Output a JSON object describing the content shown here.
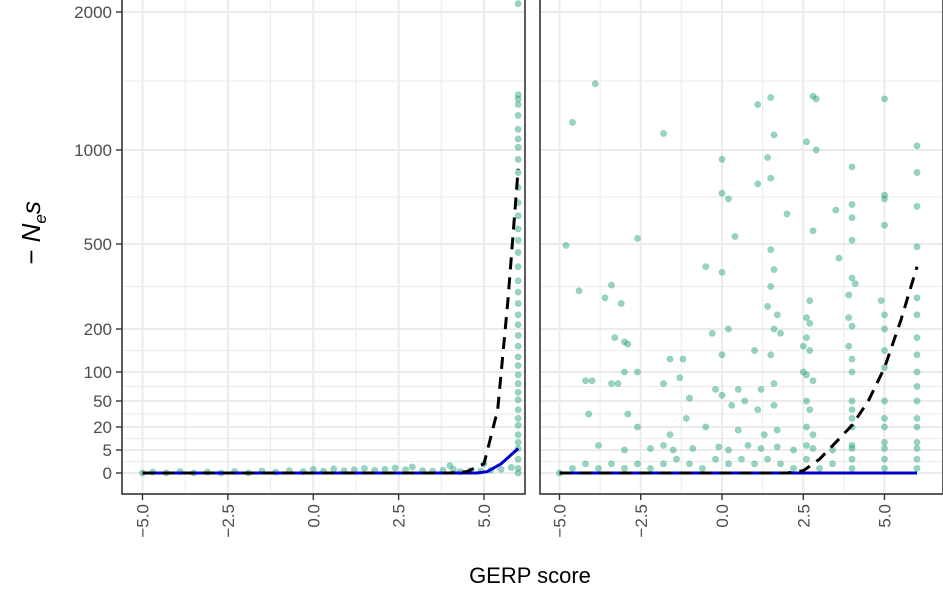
{
  "chart_data": {
    "type": "scatter",
    "xlabel": "GERP score",
    "ylabel_parts": {
      "prefix": "− N",
      "subscript": "e",
      "suffix": "s"
    },
    "x_ticks": [
      -5.0,
      -2.5,
      0.0,
      2.5,
      5.0
    ],
    "x_tick_labels": [
      "−5.0",
      "−2.5",
      "0.0",
      "2.5",
      "5.0"
    ],
    "y_ticks": [
      0,
      5,
      20,
      50,
      100,
      200,
      500,
      1000,
      2000
    ],
    "y_tick_labels": [
      "0",
      "5",
      "20",
      "50",
      "100",
      "200",
      "500",
      "1000",
      "2000"
    ],
    "y_scale": "pseudo-log (sqrt-like)",
    "y_range": [
      -60,
      2100
    ],
    "grid": true,
    "colors": {
      "points": "#1b9e77",
      "dashed": "#000000",
      "solid": "#0000cc",
      "grid": "#ebebeb",
      "border": "#333333"
    },
    "panels": [
      {
        "xlim": [
          -5.6,
          6.2
        ],
        "points": [
          {
            "x": 6.0,
            "y": 2070
          },
          {
            "x": 6.0,
            "y": 1400
          },
          {
            "x": 6.0,
            "y": 1370
          },
          {
            "x": 6.0,
            "y": 1330
          },
          {
            "x": 6.0,
            "y": 1250
          },
          {
            "x": 6.0,
            "y": 1150
          },
          {
            "x": 6.0,
            "y": 1080
          },
          {
            "x": 6.0,
            "y": 1020
          },
          {
            "x": 6.0,
            "y": 950
          },
          {
            "x": 6.0,
            "y": 880
          },
          {
            "x": 6.0,
            "y": 800
          },
          {
            "x": 6.0,
            "y": 720
          },
          {
            "x": 6.0,
            "y": 650
          },
          {
            "x": 6.0,
            "y": 580
          },
          {
            "x": 6.0,
            "y": 520
          },
          {
            "x": 6.0,
            "y": 470
          },
          {
            "x": 6.0,
            "y": 420
          },
          {
            "x": 6.0,
            "y": 370
          },
          {
            "x": 6.0,
            "y": 330
          },
          {
            "x": 6.0,
            "y": 290
          },
          {
            "x": 6.0,
            "y": 250
          },
          {
            "x": 6.0,
            "y": 215
          },
          {
            "x": 6.0,
            "y": 185
          },
          {
            "x": 6.0,
            "y": 160
          },
          {
            "x": 6.0,
            "y": 135
          },
          {
            "x": 6.0,
            "y": 115
          },
          {
            "x": 6.0,
            "y": 95
          },
          {
            "x": 6.0,
            "y": 80
          },
          {
            "x": 6.0,
            "y": 65
          },
          {
            "x": 6.0,
            "y": 52
          },
          {
            "x": 6.0,
            "y": 40
          },
          {
            "x": 6.0,
            "y": 30
          },
          {
            "x": 6.0,
            "y": 22
          },
          {
            "x": 6.0,
            "y": 15
          },
          {
            "x": 6.0,
            "y": 10
          },
          {
            "x": 6.0,
            "y": 6
          },
          {
            "x": 6.0,
            "y": 3
          },
          {
            "x": 6.0,
            "y": 1
          },
          {
            "x": 6.0,
            "y": 0
          },
          {
            "x": -5.0,
            "y": 0
          },
          {
            "x": -4.7,
            "y": 0.2
          },
          {
            "x": -4.3,
            "y": 0
          },
          {
            "x": -3.9,
            "y": 0.3
          },
          {
            "x": -3.5,
            "y": 0
          },
          {
            "x": -3.1,
            "y": 0.2
          },
          {
            "x": -2.7,
            "y": 0
          },
          {
            "x": -2.3,
            "y": 0.3
          },
          {
            "x": -1.9,
            "y": 0
          },
          {
            "x": -1.5,
            "y": 0.4
          },
          {
            "x": -1.1,
            "y": 0.2
          },
          {
            "x": -0.7,
            "y": 0.5
          },
          {
            "x": -0.3,
            "y": 0.3
          },
          {
            "x": 0.0,
            "y": 0.8
          },
          {
            "x": 0.3,
            "y": 0.4
          },
          {
            "x": 0.6,
            "y": 0.9
          },
          {
            "x": 0.9,
            "y": 0.5
          },
          {
            "x": 1.2,
            "y": 0.7
          },
          {
            "x": 1.5,
            "y": 1.0
          },
          {
            "x": 1.8,
            "y": 0.6
          },
          {
            "x": 2.1,
            "y": 0.8
          },
          {
            "x": 2.4,
            "y": 1.1
          },
          {
            "x": 2.7,
            "y": 0.7
          },
          {
            "x": 2.9,
            "y": 1.3
          },
          {
            "x": 3.2,
            "y": 0.5
          },
          {
            "x": 3.5,
            "y": 0.4
          },
          {
            "x": 3.8,
            "y": 0.6
          },
          {
            "x": 4.0,
            "y": 1.6
          },
          {
            "x": 4.1,
            "y": 0.8
          },
          {
            "x": 4.3,
            "y": 0.3
          },
          {
            "x": 4.6,
            "y": 0.5
          },
          {
            "x": 4.9,
            "y": 0.4
          },
          {
            "x": 5.0,
            "y": 2.0
          },
          {
            "x": 5.2,
            "y": 0.6
          },
          {
            "x": 5.5,
            "y": 0.8
          },
          {
            "x": 5.8,
            "y": 1.2
          }
        ],
        "dashed_line": [
          {
            "x": -5.0,
            "y": 0
          },
          {
            "x": 4.0,
            "y": 0
          },
          {
            "x": 4.5,
            "y": 0.3
          },
          {
            "x": 5.0,
            "y": 2
          },
          {
            "x": 5.4,
            "y": 40
          },
          {
            "x": 5.7,
            "y": 300
          },
          {
            "x": 6.0,
            "y": 900
          }
        ],
        "solid_line": [
          {
            "x": -5.0,
            "y": 0
          },
          {
            "x": 4.8,
            "y": 0
          },
          {
            "x": 5.1,
            "y": 0.3
          },
          {
            "x": 5.5,
            "y": 2
          },
          {
            "x": 6.0,
            "y": 6
          }
        ]
      },
      {
        "xlim": [
          -5.6,
          6.8
        ],
        "points": [
          {
            "x": -3.9,
            "y": 1480
          },
          {
            "x": -4.6,
            "y": 1200
          },
          {
            "x": -1.8,
            "y": 1120
          },
          {
            "x": 1.1,
            "y": 1330
          },
          {
            "x": 1.5,
            "y": 1380
          },
          {
            "x": 2.8,
            "y": 1390
          },
          {
            "x": 2.9,
            "y": 1370
          },
          {
            "x": 5.0,
            "y": 1370
          },
          {
            "x": 1.6,
            "y": 1110
          },
          {
            "x": 2.6,
            "y": 1060
          },
          {
            "x": 0.0,
            "y": 950
          },
          {
            "x": 1.4,
            "y": 960
          },
          {
            "x": 2.9,
            "y": 1000
          },
          {
            "x": 4.0,
            "y": 910
          },
          {
            "x": 6.0,
            "y": 1030
          },
          {
            "x": 6.0,
            "y": 880
          },
          {
            "x": 1.1,
            "y": 820
          },
          {
            "x": 1.5,
            "y": 850
          },
          {
            "x": 0.0,
            "y": 770
          },
          {
            "x": 0.2,
            "y": 740
          },
          {
            "x": 5.0,
            "y": 760
          },
          {
            "x": 5.0,
            "y": 740
          },
          {
            "x": 4.0,
            "y": 710
          },
          {
            "x": 3.5,
            "y": 680
          },
          {
            "x": 2.0,
            "y": 660
          },
          {
            "x": 4.0,
            "y": 640
          },
          {
            "x": 6.0,
            "y": 700
          },
          {
            "x": -2.6,
            "y": 530
          },
          {
            "x": 0.4,
            "y": 540
          },
          {
            "x": -4.8,
            "y": 495
          },
          {
            "x": 2.8,
            "y": 570
          },
          {
            "x": 4.0,
            "y": 520
          },
          {
            "x": 1.5,
            "y": 480
          },
          {
            "x": 6.0,
            "y": 490
          },
          {
            "x": 5.0,
            "y": 600
          },
          {
            "x": 3.6,
            "y": 450
          },
          {
            "x": -0.5,
            "y": 420
          },
          {
            "x": 0.0,
            "y": 400
          },
          {
            "x": 1.6,
            "y": 410
          },
          {
            "x": 4.0,
            "y": 380
          },
          {
            "x": 4.1,
            "y": 360
          },
          {
            "x": -4.4,
            "y": 335
          },
          {
            "x": -3.4,
            "y": 355
          },
          {
            "x": -3.6,
            "y": 310
          },
          {
            "x": -3.1,
            "y": 290
          },
          {
            "x": 1.5,
            "y": 350
          },
          {
            "x": 2.7,
            "y": 300
          },
          {
            "x": 3.9,
            "y": 320
          },
          {
            "x": 4.9,
            "y": 300
          },
          {
            "x": 6.0,
            "y": 310
          },
          {
            "x": 5.0,
            "y": 250
          },
          {
            "x": 1.4,
            "y": 280
          },
          {
            "x": 1.7,
            "y": 250
          },
          {
            "x": 2.6,
            "y": 240
          },
          {
            "x": 2.7,
            "y": 220
          },
          {
            "x": 3.9,
            "y": 240
          },
          {
            "x": 4.0,
            "y": 210
          },
          {
            "x": 1.6,
            "y": 200
          },
          {
            "x": 1.8,
            "y": 190
          },
          {
            "x": 0.2,
            "y": 200
          },
          {
            "x": -0.3,
            "y": 190
          },
          {
            "x": 5.0,
            "y": 200
          },
          {
            "x": 6.0,
            "y": 180
          },
          {
            "x": -3.3,
            "y": 180
          },
          {
            "x": -3.0,
            "y": 170
          },
          {
            "x": -2.9,
            "y": 165
          },
          {
            "x": 2.6,
            "y": 180
          },
          {
            "x": 2.5,
            "y": 160
          },
          {
            "x": 2.7,
            "y": 150
          },
          {
            "x": 3.9,
            "y": 160
          },
          {
            "x": 5.0,
            "y": 150
          },
          {
            "x": 6.0,
            "y": 140
          },
          {
            "x": -1.6,
            "y": 130
          },
          {
            "x": -1.2,
            "y": 130
          },
          {
            "x": 0.0,
            "y": 140
          },
          {
            "x": 1.0,
            "y": 150
          },
          {
            "x": 1.5,
            "y": 140
          },
          {
            "x": 4.0,
            "y": 130
          },
          {
            "x": -4.2,
            "y": 85
          },
          {
            "x": -4.0,
            "y": 85
          },
          {
            "x": -3.0,
            "y": 100
          },
          {
            "x": -3.4,
            "y": 80
          },
          {
            "x": -3.2,
            "y": 80
          },
          {
            "x": -2.6,
            "y": 100
          },
          {
            "x": -1.3,
            "y": 90
          },
          {
            "x": -1.8,
            "y": 80
          },
          {
            "x": -0.2,
            "y": 70
          },
          {
            "x": 0.0,
            "y": 60
          },
          {
            "x": 0.5,
            "y": 70
          },
          {
            "x": 1.2,
            "y": 70
          },
          {
            "x": 1.6,
            "y": 80
          },
          {
            "x": 2.5,
            "y": 100
          },
          {
            "x": 2.6,
            "y": 95
          },
          {
            "x": 2.8,
            "y": 85
          },
          {
            "x": 4.0,
            "y": 100
          },
          {
            "x": 5.0,
            "y": 110
          },
          {
            "x": 6.0,
            "y": 100
          },
          {
            "x": -4.1,
            "y": 35
          },
          {
            "x": -2.9,
            "y": 35
          },
          {
            "x": -1.0,
            "y": 55
          },
          {
            "x": -1.1,
            "y": 30
          },
          {
            "x": 0.3,
            "y": 45
          },
          {
            "x": 0.7,
            "y": 50
          },
          {
            "x": 1.1,
            "y": 40
          },
          {
            "x": 1.6,
            "y": 45
          },
          {
            "x": 2.6,
            "y": 50
          },
          {
            "x": 2.7,
            "y": 40
          },
          {
            "x": 4.0,
            "y": 50
          },
          {
            "x": 4.0,
            "y": 40
          },
          {
            "x": 4.0,
            "y": 30
          },
          {
            "x": 5.0,
            "y": 50
          },
          {
            "x": 5.0,
            "y": 30
          },
          {
            "x": 6.0,
            "y": 50
          },
          {
            "x": 6.0,
            "y": 30
          },
          {
            "x": -2.6,
            "y": 20
          },
          {
            "x": -1.6,
            "y": 15
          },
          {
            "x": -0.5,
            "y": 20
          },
          {
            "x": 0.5,
            "y": 18
          },
          {
            "x": 1.3,
            "y": 15
          },
          {
            "x": 1.7,
            "y": 18
          },
          {
            "x": 2.6,
            "y": 20
          },
          {
            "x": 2.8,
            "y": 15
          },
          {
            "x": 4.0,
            "y": 20
          },
          {
            "x": 5.0,
            "y": 20
          },
          {
            "x": 6.0,
            "y": 20
          },
          {
            "x": -3.8,
            "y": 8
          },
          {
            "x": -3.0,
            "y": 5
          },
          {
            "x": -2.2,
            "y": 6
          },
          {
            "x": -1.8,
            "y": 8
          },
          {
            "x": -1.5,
            "y": 5
          },
          {
            "x": -0.9,
            "y": 6
          },
          {
            "x": -0.1,
            "y": 7
          },
          {
            "x": 0.2,
            "y": 5
          },
          {
            "x": 0.8,
            "y": 8
          },
          {
            "x": 1.2,
            "y": 6
          },
          {
            "x": 1.7,
            "y": 7
          },
          {
            "x": 2.2,
            "y": 5
          },
          {
            "x": 2.6,
            "y": 8
          },
          {
            "x": 2.8,
            "y": 6
          },
          {
            "x": 3.4,
            "y": 5
          },
          {
            "x": 4.0,
            "y": 8
          },
          {
            "x": 4.0,
            "y": 6
          },
          {
            "x": 5.0,
            "y": 10
          },
          {
            "x": 5.0,
            "y": 6
          },
          {
            "x": 6.0,
            "y": 10
          },
          {
            "x": 6.0,
            "y": 6
          },
          {
            "x": -5.0,
            "y": 0
          },
          {
            "x": -4.6,
            "y": 1
          },
          {
            "x": -4.2,
            "y": 2
          },
          {
            "x": -3.8,
            "y": 1
          },
          {
            "x": -3.4,
            "y": 2
          },
          {
            "x": -3.0,
            "y": 1
          },
          {
            "x": -2.6,
            "y": 2
          },
          {
            "x": -2.2,
            "y": 1
          },
          {
            "x": -1.8,
            "y": 2
          },
          {
            "x": -1.4,
            "y": 3
          },
          {
            "x": -1.0,
            "y": 2
          },
          {
            "x": -0.6,
            "y": 1
          },
          {
            "x": -0.2,
            "y": 3
          },
          {
            "x": 0.2,
            "y": 2
          },
          {
            "x": 0.6,
            "y": 3
          },
          {
            "x": 1.0,
            "y": 2
          },
          {
            "x": 1.4,
            "y": 3
          },
          {
            "x": 1.8,
            "y": 2
          },
          {
            "x": 2.2,
            "y": 1
          },
          {
            "x": 2.6,
            "y": 3
          },
          {
            "x": 3.0,
            "y": 1
          },
          {
            "x": 3.4,
            "y": 2
          },
          {
            "x": 4.0,
            "y": 3
          },
          {
            "x": 4.0,
            "y": 1
          },
          {
            "x": 5.0,
            "y": 3
          },
          {
            "x": 5.0,
            "y": 1
          },
          {
            "x": 6.0,
            "y": 3
          },
          {
            "x": 6.0,
            "y": 1
          },
          {
            "x": 6.0,
            "y": 250
          },
          {
            "x": 6.0,
            "y": 75
          }
        ],
        "dashed_line": [
          {
            "x": -5.0,
            "y": 0
          },
          {
            "x": 2.0,
            "y": 0
          },
          {
            "x": 2.5,
            "y": 0.5
          },
          {
            "x": 3.0,
            "y": 3
          },
          {
            "x": 3.5,
            "y": 10
          },
          {
            "x": 4.0,
            "y": 22
          },
          {
            "x": 4.5,
            "y": 50
          },
          {
            "x": 5.0,
            "y": 110
          },
          {
            "x": 5.5,
            "y": 230
          },
          {
            "x": 6.0,
            "y": 420
          }
        ],
        "solid_line": [
          {
            "x": -5.0,
            "y": 0
          },
          {
            "x": 6.0,
            "y": 0
          }
        ]
      }
    ]
  }
}
